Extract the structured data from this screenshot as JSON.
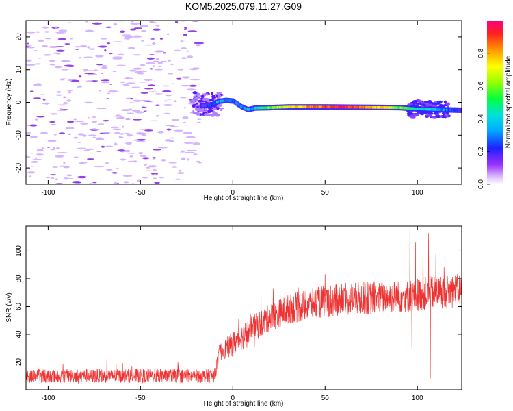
{
  "title": "KOM5.2025.079.11.27.G09",
  "chart_data": [
    {
      "type": "heatmap",
      "xlabel": "Height of straight line (km)",
      "ylabel": "Frequency (Hz)",
      "xlim": [
        -112,
        124
      ],
      "ylim": [
        -25,
        25
      ],
      "xticks": [
        -100,
        -50,
        0,
        50,
        100
      ],
      "yticks": [
        -20,
        -10,
        0,
        10,
        20
      ],
      "colorbar": {
        "label": "Normalized spectral amplitude",
        "range": [
          0,
          1
        ],
        "ticks": [
          0.0,
          0.2,
          0.4,
          0.6,
          0.8
        ]
      },
      "ridge": [
        {
          "x": -18,
          "f": -1.0
        },
        {
          "x": -12,
          "f": -0.8
        },
        {
          "x": -8,
          "f": 0.3
        },
        {
          "x": -4,
          "f": 0.6
        },
        {
          "x": 0,
          "f": 0.4
        },
        {
          "x": 4,
          "f": -1.2
        },
        {
          "x": 8,
          "f": -2.2
        },
        {
          "x": 12,
          "f": -1.7
        },
        {
          "x": 20,
          "f": -1.6
        },
        {
          "x": 30,
          "f": -1.4
        },
        {
          "x": 50,
          "f": -1.4
        },
        {
          "x": 70,
          "f": -1.5
        },
        {
          "x": 90,
          "f": -1.6
        },
        {
          "x": 100,
          "f": -2.0
        },
        {
          "x": 110,
          "f": -2.2
        },
        {
          "x": 124,
          "f": -2.4
        }
      ],
      "ridge_amplitude": [
        {
          "x": -18,
          "a": 0.15
        },
        {
          "x": -8,
          "a": 0.35
        },
        {
          "x": 0,
          "a": 0.3
        },
        {
          "x": 10,
          "a": 0.35
        },
        {
          "x": 20,
          "a": 0.6
        },
        {
          "x": 40,
          "a": 0.8
        },
        {
          "x": 60,
          "a": 0.95
        },
        {
          "x": 80,
          "a": 0.75
        },
        {
          "x": 95,
          "a": 0.5
        },
        {
          "x": 110,
          "a": 0.35
        },
        {
          "x": 124,
          "a": 0.2
        }
      ]
    },
    {
      "type": "line",
      "xlabel": "Height of straight line (km)",
      "ylabel": "SNR (v/v)",
      "xlim": [
        -112,
        124
      ],
      "ylim": [
        0,
        118
      ],
      "xticks": [
        -100,
        -50,
        0,
        50,
        100
      ],
      "yticks": [
        20,
        40,
        60,
        80,
        100
      ],
      "series_color": "#ee3333",
      "trend": [
        {
          "x": -112,
          "y": 10
        },
        {
          "x": -10,
          "y": 10
        },
        {
          "x": -7,
          "y": 27
        },
        {
          "x": 0,
          "y": 33
        },
        {
          "x": 10,
          "y": 43
        },
        {
          "x": 20,
          "y": 52
        },
        {
          "x": 30,
          "y": 58
        },
        {
          "x": 50,
          "y": 64
        },
        {
          "x": 70,
          "y": 66
        },
        {
          "x": 90,
          "y": 67
        },
        {
          "x": 110,
          "y": 70
        },
        {
          "x": 124,
          "y": 72
        }
      ],
      "noise_amplitude": [
        {
          "x": -112,
          "a": 5
        },
        {
          "x": -10,
          "a": 5
        },
        {
          "x": 0,
          "a": 9
        },
        {
          "x": 50,
          "a": 12
        },
        {
          "x": 124,
          "a": 12
        }
      ],
      "spikes": [
        {
          "x": 96,
          "y": 118
        },
        {
          "x": 97,
          "y": 30
        },
        {
          "x": 99,
          "y": 106
        },
        {
          "x": 103,
          "y": 108
        },
        {
          "x": 106,
          "y": 113
        },
        {
          "x": 107,
          "y": 8
        },
        {
          "x": 110,
          "y": 98
        }
      ]
    }
  ]
}
